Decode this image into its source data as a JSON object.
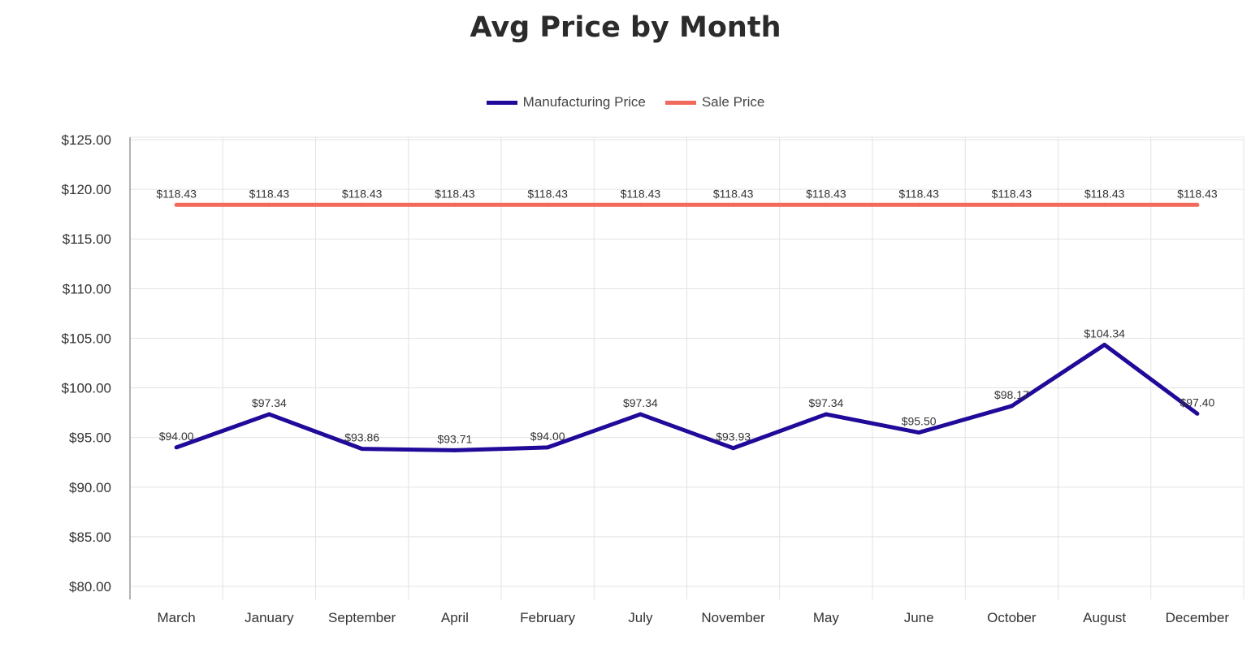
{
  "chart_data": {
    "type": "line",
    "title": "Avg Price by Month",
    "xlabel": "",
    "ylabel": "",
    "categories": [
      "March",
      "January",
      "September",
      "April",
      "February",
      "July",
      "November",
      "May",
      "June",
      "October",
      "August",
      "December"
    ],
    "ylim": [
      80,
      125
    ],
    "yticks": [
      80,
      85,
      90,
      95,
      100,
      105,
      110,
      115,
      120,
      125
    ],
    "ytick_labels": [
      "$80.00",
      "$85.00",
      "$90.00",
      "$95.00",
      "$100.00",
      "$105.00",
      "$110.00",
      "$115.00",
      "$120.00",
      "$125.00"
    ],
    "grid": true,
    "legend_position": "top-center",
    "series": [
      {
        "name": "Manufacturing Price",
        "color": "#1f0a99",
        "values": [
          94.0,
          97.34,
          93.86,
          93.71,
          94.0,
          97.34,
          93.93,
          97.34,
          95.5,
          98.17,
          104.34,
          97.4
        ],
        "labels": [
          "$94.00",
          "$97.34",
          "$93.86",
          "$93.71",
          "$94.00",
          "$97.34",
          "$93.93",
          "$97.34",
          "$95.50",
          "$98.17",
          "$104.34",
          "$97.40"
        ]
      },
      {
        "name": "Sale Price",
        "color": "#f26a5b",
        "values": [
          118.43,
          118.43,
          118.43,
          118.43,
          118.43,
          118.43,
          118.43,
          118.43,
          118.43,
          118.43,
          118.43,
          118.43
        ],
        "labels": [
          "$118.43",
          "$118.43",
          "$118.43",
          "$118.43",
          "$118.43",
          "$118.43",
          "$118.43",
          "$118.43",
          "$118.43",
          "$118.43",
          "$118.43",
          "$118.43"
        ]
      }
    ]
  }
}
